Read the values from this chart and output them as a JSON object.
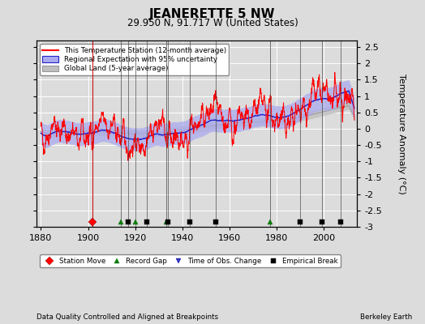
{
  "title": "JEANERETTE 5 NW",
  "subtitle": "29.950 N, 91.717 W (United States)",
  "xlabel_left": "Data Quality Controlled and Aligned at Breakpoints",
  "xlabel_right": "Berkeley Earth",
  "ylabel": "Temperature Anomaly (°C)",
  "ylim": [
    -3.0,
    2.7
  ],
  "yticks": [
    -3,
    -2.5,
    -2,
    -1.5,
    -1,
    -0.5,
    0,
    0.5,
    1,
    1.5,
    2,
    2.5
  ],
  "xlim": [
    1878,
    2014
  ],
  "xticks": [
    1880,
    1900,
    1920,
    1940,
    1960,
    1980,
    2000
  ],
  "bg_color": "#dcdcdc",
  "plot_bg_color": "#dcdcdc",
  "grid_color": "#ffffff",
  "station_color": "#ff0000",
  "regional_line_color": "#2222cc",
  "regional_fill_color": "#aaaaee",
  "global_color": "#c0c0c0",
  "legend_station": "This Temperature Station (12-month average)",
  "legend_regional": "Regional Expectation with 95% uncertainty",
  "legend_global": "Global Land (5-year average)",
  "station_moves": [
    1902
  ],
  "record_gaps": [
    1914,
    1920,
    1933,
    1977
  ],
  "obs_changes": [],
  "empirical_breaks": [
    1917,
    1925,
    1934,
    1943,
    1954,
    1990,
    1999,
    2007
  ],
  "seed": 42
}
